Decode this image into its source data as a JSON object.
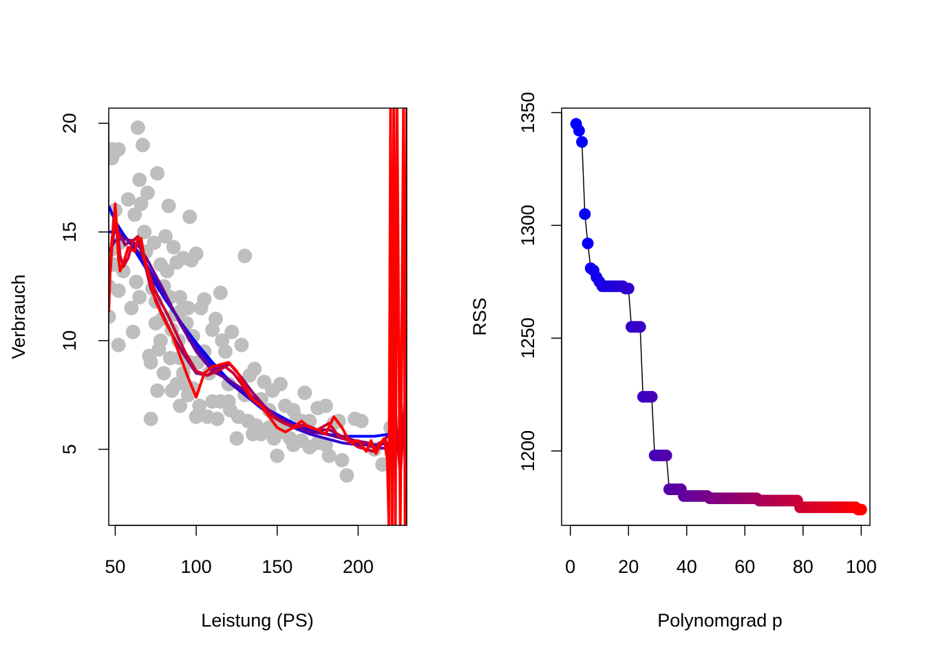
{
  "chart_data": [
    {
      "type": "scatter",
      "title": "",
      "xlabel": "Leistung (PS)",
      "ylabel": "Verbrauch",
      "xlim": [
        46,
        230
      ],
      "ylim": [
        1.5,
        20.7
      ],
      "xticks": [
        50,
        100,
        150,
        200
      ],
      "yticks": [
        5,
        10,
        15,
        20
      ],
      "grid": false,
      "legend": "none",
      "point_color": "#BEBEBE",
      "color_low_degree": "#0000FF",
      "color_high_degree": "#FF0000",
      "points": {
        "x": [
          46,
          48,
          48,
          49,
          52,
          52,
          46,
          48,
          49,
          50,
          52,
          53,
          55,
          58,
          60,
          61,
          62,
          63,
          64,
          65,
          65,
          66,
          67,
          68,
          69,
          70,
          71,
          72,
          72,
          73,
          74,
          75,
          75,
          76,
          76,
          77,
          78,
          78,
          79,
          80,
          80,
          81,
          82,
          83,
          84,
          84,
          85,
          85,
          86,
          87,
          88,
          88,
          89,
          90,
          90,
          90,
          91,
          92,
          92,
          93,
          94,
          95,
          95,
          96,
          96,
          97,
          98,
          98,
          100,
          100,
          101,
          102,
          103,
          105,
          105,
          107,
          108,
          110,
          110,
          112,
          113,
          115,
          115,
          116,
          118,
          120,
          120,
          121,
          122,
          125,
          126,
          128,
          130,
          130,
          132,
          133,
          135,
          136,
          137,
          140,
          140,
          142,
          145,
          145,
          147,
          148,
          150,
          150,
          152,
          153,
          155,
          155,
          158,
          160,
          160,
          162,
          165,
          165,
          167,
          170,
          170,
          175,
          175,
          180,
          180,
          182,
          185,
          188,
          190,
          193,
          198,
          202,
          210,
          215,
          220,
          225,
          230
        ],
        "y": [
          11.1,
          18.8,
          18.4,
          18.6,
          18.8,
          12.3,
          12.5,
          14.2,
          13.5,
          16.0,
          9.8,
          14.5,
          13.2,
          16.5,
          11.5,
          10.4,
          15.8,
          12.7,
          19.8,
          17.4,
          12.0,
          16.3,
          19.0,
          15.0,
          14.1,
          16.8,
          9.3,
          6.4,
          9.0,
          12.4,
          14.5,
          10.8,
          11.8,
          7.7,
          17.7,
          9.6,
          13.5,
          10.0,
          11.0,
          8.5,
          12.5,
          14.8,
          13.2,
          16.2,
          9.2,
          12.0,
          7.7,
          10.5,
          14.3,
          11.2,
          8.0,
          13.6,
          10.0,
          9.2,
          7.0,
          12.0,
          11.4,
          8.5,
          13.8,
          8.0,
          10.8,
          7.5,
          11.5,
          15.7,
          9.0,
          13.7,
          7.8,
          10.2,
          6.5,
          14.0,
          9.0,
          7.0,
          11.5,
          9.5,
          11.9,
          6.5,
          8.5,
          10.5,
          7.2,
          11.0,
          6.4,
          12.2,
          7.2,
          10.0,
          9.5,
          7.2,
          8.0,
          6.8,
          10.4,
          5.5,
          6.5,
          9.8,
          7.5,
          13.9,
          6.3,
          8.4,
          5.7,
          8.7,
          6.1,
          7.3,
          5.7,
          8.1,
          6.0,
          6.8,
          7.7,
          5.5,
          4.7,
          6.3,
          8.0,
          5.8,
          6.1,
          7.0,
          5.5,
          6.8,
          5.2,
          6.4,
          6.3,
          5.4,
          7.6,
          6.3,
          5.1,
          6.9,
          5.3,
          7.0,
          5.2,
          4.7,
          6.2,
          6.3,
          4.5,
          3.8,
          6.4,
          6.3,
          5.0,
          4.3,
          6.0,
          6.2,
          6.8
        ]
      },
      "fits_low_degree": [
        {
          "x": [
            46,
            50,
            55,
            60,
            65,
            70,
            80,
            90,
            100,
            110,
            120,
            130,
            140,
            150,
            160,
            170,
            180,
            190,
            200,
            210,
            220,
            226
          ],
          "y": [
            16.2,
            15.5,
            14.9,
            14.4,
            13.8,
            13.2,
            12.0,
            10.9,
            9.9,
            9.0,
            8.2,
            7.6,
            7.0,
            6.6,
            6.2,
            5.9,
            5.7,
            5.6,
            5.6,
            5.6,
            5.7,
            5.8
          ]
        },
        {
          "x": [
            46,
            50,
            55,
            60,
            65,
            70,
            80,
            90,
            100,
            110,
            120,
            130,
            140,
            150,
            160,
            170,
            180,
            190,
            200,
            210,
            220,
            226
          ],
          "y": [
            15.0,
            15.0,
            14.8,
            14.5,
            14.0,
            13.4,
            12.1,
            10.9,
            9.7,
            8.8,
            8.1,
            7.5,
            6.9,
            6.4,
            6.0,
            5.7,
            5.5,
            5.3,
            5.2,
            5.2,
            5.3,
            5.4
          ]
        },
        {
          "x": [
            46,
            50,
            55,
            60,
            65,
            70,
            80,
            90,
            100,
            110,
            120,
            130,
            140,
            150,
            160,
            170,
            180,
            190,
            200,
            210,
            220,
            226
          ],
          "y": [
            14.1,
            14.6,
            14.7,
            14.6,
            14.3,
            13.7,
            12.3,
            10.8,
            9.5,
            8.6,
            8.2,
            7.7,
            7.1,
            6.5,
            6.1,
            5.8,
            5.7,
            5.5,
            5.3,
            5.1,
            5.0,
            5.6
          ]
        },
        {
          "x": [
            46,
            48,
            50,
            53,
            56,
            60,
            64,
            68,
            72,
            78,
            85,
            92,
            100,
            107,
            114,
            121,
            128,
            135,
            142,
            150,
            158,
            166,
            174,
            182,
            190,
            198,
            206,
            212,
            218,
            222,
            226,
            229
          ],
          "y": [
            12.3,
            14.4,
            15.3,
            14.9,
            14.4,
            14.6,
            14.7,
            13.6,
            12.4,
            11.4,
            10.3,
            9.4,
            8.5,
            8.4,
            8.8,
            8.9,
            8.3,
            7.6,
            7.0,
            6.4,
            6.1,
            6.1,
            5.9,
            5.9,
            5.6,
            5.4,
            5.3,
            5.0,
            5.6,
            5.8,
            4.6,
            7.2
          ]
        },
        {
          "x": [
            47,
            49,
            51,
            53,
            55,
            58,
            61,
            64,
            67,
            70,
            74,
            78,
            83,
            88,
            93,
            100,
            107,
            113,
            118,
            123,
            128,
            133,
            140,
            147,
            154,
            161,
            168,
            175,
            182,
            188,
            194,
            200,
            205,
            209,
            213,
            217,
            220,
            223,
            226,
            229
          ],
          "y": [
            13.2,
            15.6,
            15.4,
            13.9,
            13.4,
            13.8,
            14.6,
            14.8,
            14.0,
            13.3,
            12.4,
            11.8,
            11.1,
            10.3,
            9.5,
            8.6,
            8.4,
            8.6,
            8.8,
            8.5,
            8.0,
            7.4,
            7.0,
            6.5,
            6.2,
            6.0,
            6.1,
            5.9,
            6.2,
            5.6,
            5.4,
            5.1,
            5.0,
            4.9,
            5.3,
            5.4,
            4.3,
            6.6,
            3.8,
            7.0
          ]
        }
      ],
      "fits_high_degree": [
        {
          "x": [
            46,
            47,
            48,
            49,
            50,
            51,
            52,
            53,
            54,
            56,
            58,
            60,
            62,
            64,
            66,
            68,
            70,
            72,
            75,
            80,
            85,
            90,
            95,
            100,
            105,
            110,
            115,
            120,
            125,
            130,
            135,
            140,
            145,
            150,
            155,
            160,
            165,
            170,
            175,
            180,
            185,
            190,
            195,
            200,
            205,
            208,
            211,
            214,
            216,
            218,
            219,
            220,
            221,
            222,
            223,
            224,
            226,
            228,
            229,
            230
          ],
          "y": [
            11.3,
            13.5,
            14.7,
            15.2,
            16.3,
            15.1,
            13.8,
            13.2,
            13.4,
            13.8,
            14.3,
            14.2,
            14.1,
            14.7,
            14.7,
            13.8,
            13.2,
            12.6,
            11.8,
            11.0,
            10.3,
            9.3,
            8.3,
            7.4,
            8.5,
            8.8,
            8.9,
            9.0,
            8.6,
            7.9,
            7.3,
            7.0,
            6.5,
            6.0,
            5.8,
            6.0,
            6.3,
            6.0,
            5.9,
            5.7,
            6.5,
            6.0,
            5.3,
            5.4,
            4.9,
            5.4,
            4.8,
            5.3,
            5.5,
            4.5,
            1.5,
            20.7,
            1.5,
            20.7,
            1.5,
            20.7,
            1.5,
            20.7,
            1.5,
            20.7
          ]
        }
      ]
    },
    {
      "type": "scatter",
      "title": "",
      "xlabel": "Polynomgrad p",
      "ylabel": "RSS",
      "xlim": [
        -3,
        103
      ],
      "ylim": [
        1167,
        1352
      ],
      "xticks": [
        0,
        20,
        40,
        60,
        80,
        100
      ],
      "yticks": [
        1200,
        1250,
        1300,
        1350
      ],
      "grid": false,
      "legend": "none",
      "point_color_start": "#0000FF",
      "point_color_end": "#FF0000",
      "x": [
        2,
        3,
        4,
        5,
        6,
        7,
        8,
        9,
        10,
        11,
        12,
        13,
        14,
        15,
        16,
        17,
        18,
        19,
        20,
        21,
        22,
        23,
        24,
        25,
        26,
        27,
        28,
        29,
        30,
        31,
        32,
        33,
        34,
        35,
        36,
        37,
        38,
        39,
        40,
        41,
        42,
        43,
        44,
        45,
        46,
        47,
        48,
        49,
        50,
        51,
        52,
        53,
        54,
        55,
        56,
        57,
        58,
        59,
        60,
        61,
        62,
        63,
        64,
        65,
        66,
        67,
        68,
        69,
        70,
        71,
        72,
        73,
        74,
        75,
        76,
        77,
        78,
        79,
        80,
        81,
        82,
        83,
        84,
        85,
        86,
        87,
        88,
        89,
        90,
        91,
        92,
        93,
        94,
        95,
        96,
        97,
        98,
        99,
        100
      ],
      "y": [
        1345,
        1342,
        1337,
        1305,
        1292,
        1281,
        1280,
        1277,
        1275,
        1273,
        1273,
        1273,
        1273,
        1273,
        1273,
        1273,
        1273,
        1272,
        1272,
        1255,
        1255,
        1255,
        1255,
        1224,
        1224,
        1224,
        1224,
        1198,
        1198,
        1198,
        1198,
        1198,
        1183,
        1183,
        1183,
        1183,
        1183,
        1180,
        1180,
        1180,
        1180,
        1180,
        1180,
        1180,
        1180,
        1180,
        1179,
        1179,
        1179,
        1179,
        1179,
        1179,
        1179,
        1179,
        1179,
        1179,
        1179,
        1179,
        1179,
        1179,
        1179,
        1179,
        1179,
        1178,
        1178,
        1178,
        1178,
        1178,
        1178,
        1178,
        1178,
        1178,
        1178,
        1178,
        1178,
        1178,
        1178,
        1175,
        1175,
        1175,
        1175,
        1175,
        1175,
        1175,
        1175,
        1175,
        1175,
        1175,
        1175,
        1175,
        1175,
        1175,
        1175,
        1175,
        1175,
        1175,
        1175,
        1174,
        1174
      ]
    }
  ]
}
